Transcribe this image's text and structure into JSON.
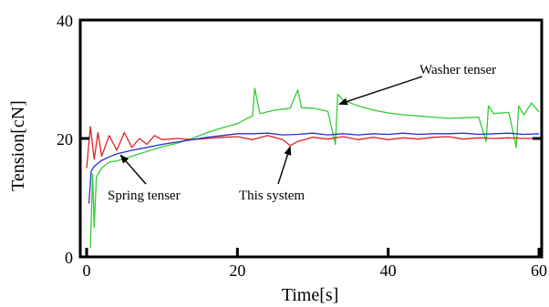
{
  "chart_data": {
    "type": "line",
    "title": "",
    "xlabel": "Time[s]",
    "ylabel": "Tension[cN]",
    "xlim": [
      0,
      60
    ],
    "ylim": [
      0,
      40
    ],
    "xticks": [
      0,
      20,
      40,
      60
    ],
    "yticks": [
      0,
      20,
      40
    ],
    "grid": false,
    "legend": "none",
    "series": [
      {
        "name": "Washer tenser",
        "color": "#33cc33",
        "x": [
          0.5,
          0.8,
          1.0,
          1.3,
          2,
          3,
          4,
          6,
          8,
          10,
          12,
          14,
          16,
          18,
          20,
          21,
          22,
          22.3,
          23,
          25,
          27,
          28,
          28.5,
          30,
          32,
          33,
          33.3,
          34,
          36,
          38,
          40,
          42,
          44,
          46,
          48,
          50,
          52,
          53,
          53.3,
          54,
          56,
          57,
          57.3,
          58,
          59,
          60
        ],
        "y": [
          1.5,
          14,
          5,
          13.5,
          15,
          16,
          16.2,
          17,
          17.8,
          18.6,
          19.2,
          20,
          21,
          21.8,
          22.5,
          23.2,
          23.8,
          28.5,
          24.2,
          24.8,
          25.1,
          28.2,
          25.2,
          25.1,
          24.6,
          19,
          27.5,
          26.5,
          25.5,
          24.8,
          24.3,
          24,
          23.8,
          23.6,
          23.4,
          23.5,
          23.6,
          19.5,
          25.5,
          24.2,
          24.4,
          18.5,
          25.5,
          24,
          26,
          24.5
        ]
      },
      {
        "name": "This system",
        "color": "#dd2222",
        "x": [
          0,
          0.5,
          1.0,
          1.5,
          2,
          3,
          4,
          5,
          6,
          7,
          8,
          9,
          10,
          12,
          14,
          16,
          18,
          20,
          22,
          24,
          26,
          27,
          28,
          30,
          32,
          34,
          36,
          38,
          40,
          42,
          44,
          46,
          48,
          50,
          52,
          54,
          56,
          58,
          60
        ],
        "y": [
          15,
          22,
          16.5,
          21,
          17,
          20.5,
          18,
          21,
          18.5,
          20,
          19,
          20.5,
          19.8,
          20,
          19.8,
          20,
          20.2,
          20.3,
          19.8,
          20.5,
          19.8,
          18.8,
          19.5,
          20.2,
          19.9,
          20.3,
          19.8,
          20.2,
          19.8,
          20.1,
          19.9,
          20.2,
          20.3,
          19.9,
          20.1,
          20,
          20.1,
          20,
          20
        ]
      },
      {
        "name": "Spring tenser",
        "color": "#2233cc",
        "x": [
          0.3,
          0.6,
          1,
          1.5,
          2,
          3,
          4,
          6,
          8,
          10,
          12,
          14,
          16,
          18,
          20,
          22,
          24,
          26,
          28,
          30,
          32,
          34,
          36,
          38,
          40,
          42,
          44,
          46,
          48,
          50,
          52,
          54,
          56,
          58,
          60
        ],
        "y": [
          9,
          14.5,
          15.3,
          15.8,
          16.3,
          16.9,
          17.4,
          18,
          18.5,
          19,
          19.4,
          19.8,
          20.2,
          20.5,
          20.8,
          20.8,
          20.9,
          20.6,
          20.7,
          20.9,
          20.6,
          20.8,
          20.6,
          20.8,
          20.7,
          20.9,
          20.7,
          20.8,
          20.8,
          20.9,
          20.7,
          20.8,
          20.9,
          20.7,
          20.8
        ]
      }
    ],
    "annotations": [
      {
        "text": "Washer tenser",
        "point": [
          33.5,
          25.8
        ]
      },
      {
        "text": "Spring tenser",
        "point": [
          4.5,
          17.2
        ]
      },
      {
        "text": "This system",
        "point": [
          27,
          18.6
        ]
      }
    ]
  }
}
